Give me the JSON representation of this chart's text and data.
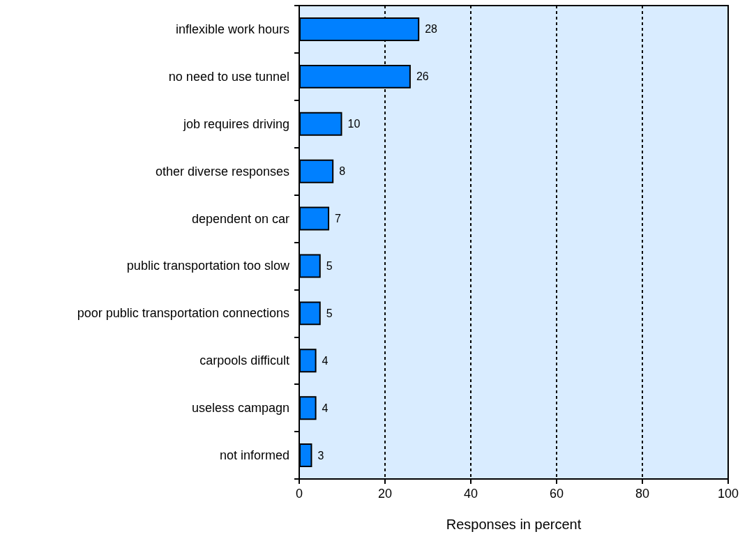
{
  "chart_data": {
    "type": "bar",
    "orientation": "horizontal",
    "xlabel": "Responses in percent",
    "categories": [
      "inflexible work hours",
      "no need to use tunnel",
      "job requires driving",
      "other diverse responses",
      "dependent on car",
      "public transportation too slow",
      "poor public transportation connections",
      "carpools difficult",
      "useless campagn",
      "not informed"
    ],
    "values": [
      28,
      26,
      10,
      8,
      7,
      5,
      5,
      4,
      4,
      3
    ],
    "color": "#0080ff",
    "xlim": [
      0,
      100
    ],
    "xticks": [
      0,
      20,
      40,
      60,
      80,
      100
    ],
    "grid": "x",
    "data_labels": true
  }
}
